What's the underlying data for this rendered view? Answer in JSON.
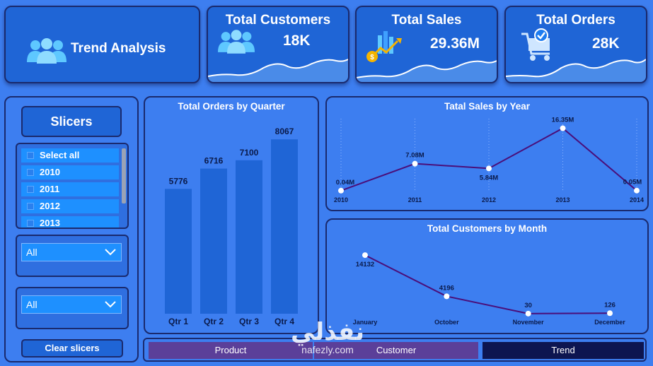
{
  "header": {
    "title": "Trend Analysis",
    "kpis": [
      {
        "title": "Total Customers",
        "value": "18K",
        "icon": "users-icon"
      },
      {
        "title": "Total Sales",
        "value": "29.36M",
        "icon": "sales-chart-icon"
      },
      {
        "title": "Total Orders",
        "value": "28K",
        "icon": "cart-icon"
      }
    ]
  },
  "slicers": {
    "title": "Slicers",
    "year_items": [
      "Select all",
      "2010",
      "2011",
      "2012",
      "2013"
    ],
    "dropdown1": "All",
    "dropdown2": "All",
    "clear_label": "Clear slicers"
  },
  "nav": {
    "tabs": [
      "Product",
      "Customer",
      "Trend"
    ],
    "active": "Trend"
  },
  "watermark": {
    "arabic": "نفذلي",
    "latin": "nafezly.com"
  },
  "colors": {
    "background": "#3d7ef0",
    "bar": "#1f65d6",
    "line": "#4a0f7a",
    "nav_active": "#0d1550",
    "nav_inactive": "#5b3f99"
  },
  "chart_data": [
    {
      "type": "bar",
      "title": "Total Orders by Quarter",
      "categories": [
        "Qtr 1",
        "Qtr 2",
        "Qtr 3",
        "Qtr 4"
      ],
      "values": [
        5776,
        6716,
        7100,
        8067
      ],
      "labels": [
        "5776",
        "6716",
        "7100",
        "8067"
      ],
      "ylim": [
        0,
        8500
      ]
    },
    {
      "type": "line",
      "title": "Tatal Sales by Year",
      "categories": [
        "2010",
        "2011",
        "2012",
        "2013",
        "2014"
      ],
      "values": [
        0.04,
        7.08,
        5.84,
        16.35,
        0.05
      ],
      "labels": [
        "0.04M",
        "7.08M",
        "5.84M",
        "16.35M",
        "0.05M"
      ],
      "ylim": [
        0,
        17
      ]
    },
    {
      "type": "line",
      "title": "Total Customers by Month",
      "categories": [
        "January",
        "October",
        "November",
        "December"
      ],
      "values": [
        14132,
        4196,
        30,
        126
      ],
      "labels": [
        "14132",
        "4196",
        "30",
        "126"
      ],
      "ylim": [
        0,
        15000
      ]
    }
  ]
}
